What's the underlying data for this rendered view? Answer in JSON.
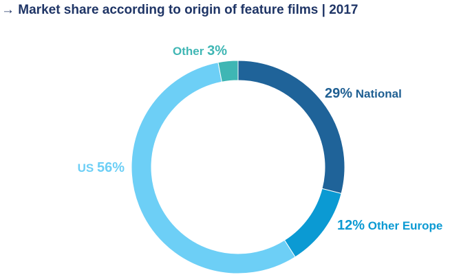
{
  "title_arrow": "→",
  "title": "Market share according to origin of feature films | 2017",
  "chart_data": {
    "type": "pie",
    "title": "Market share according to origin of feature films | 2017",
    "donut": true,
    "slices": [
      {
        "name": "National",
        "value": 29,
        "percent_label": "29%",
        "category_label": "National",
        "color": "#1f6399",
        "label_color": "#1f5f92"
      },
      {
        "name": "Other Europe",
        "value": 12,
        "percent_label": "12%",
        "category_label": "Other Europe",
        "color": "#0b9ad3",
        "label_color": "#0b9ad3"
      },
      {
        "name": "US",
        "value": 56,
        "percent_label": "56%",
        "category_label": "US",
        "color": "#6dcff6",
        "label_color": "#6dcff6"
      },
      {
        "name": "Other",
        "value": 3,
        "percent_label": "3%",
        "category_label": "Other",
        "color": "#3fb6b4",
        "label_color": "#3fb6b4"
      }
    ]
  }
}
